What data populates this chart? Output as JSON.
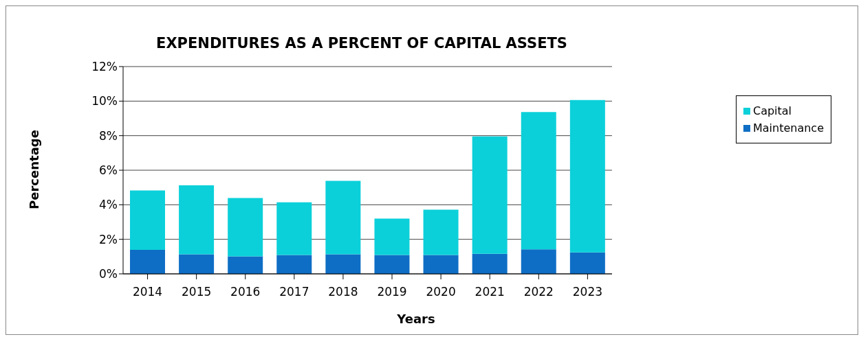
{
  "chart_data": {
    "type": "bar",
    "title": "EXPENDITURES AS A PERCENT OF CAPITAL ASSETS",
    "xlabel": "Years",
    "ylabel": "Percentage",
    "categories": [
      "2014",
      "2015",
      "2016",
      "2017",
      "2018",
      "2019",
      "2020",
      "2021",
      "2022",
      "2023"
    ],
    "stacked": true,
    "series": [
      {
        "name": "Maintenance",
        "color": "#0e6ec5",
        "values": [
          1.39,
          1.13,
          1.01,
          1.09,
          1.13,
          1.09,
          1.09,
          1.16,
          1.42,
          1.24
        ]
      },
      {
        "name": "Capital",
        "color": "#0bd0d9",
        "values": [
          3.44,
          4.0,
          3.38,
          3.05,
          4.25,
          2.11,
          2.63,
          6.8,
          7.95,
          8.82
        ]
      }
    ],
    "ylim": [
      0,
      12
    ],
    "yticks": [
      {
        "value": 0,
        "label": "0%"
      },
      {
        "value": 2,
        "label": "2%"
      },
      {
        "value": 4,
        "label": "4%"
      },
      {
        "value": 6,
        "label": "6%"
      },
      {
        "value": 8,
        "label": "8%"
      },
      {
        "value": 10,
        "label": "10%"
      },
      {
        "value": 12,
        "label": "12%"
      }
    ],
    "grid": "y",
    "legend": "right"
  }
}
